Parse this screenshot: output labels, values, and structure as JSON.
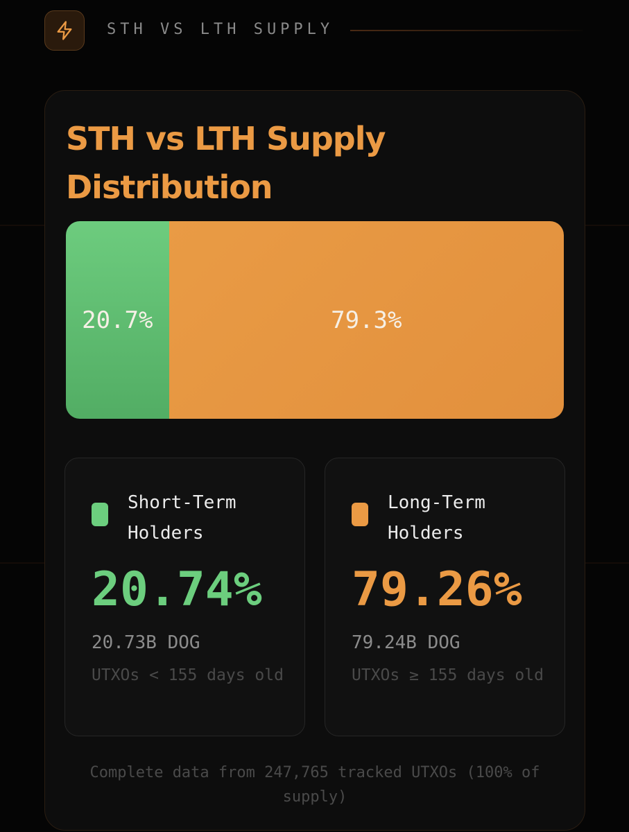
{
  "header": {
    "title": "STH VS LTH SUPPLY",
    "icon": "lightning-icon",
    "accent": "#eb9a44"
  },
  "card": {
    "title": "STH vs LTH Supply Distribution",
    "footnote": "Complete data from 247,765 tracked UTXOs (100% of supply)"
  },
  "chart_data": {
    "type": "bar",
    "orientation": "horizontal-stacked",
    "categories": [
      "Short-Term Holders",
      "Long-Term Holders"
    ],
    "values": [
      20.7,
      79.3
    ],
    "value_labels": [
      "20.7%",
      "79.3%"
    ],
    "colors": [
      "#62c274",
      "#e8963f"
    ],
    "title": "STH vs LTH Supply Distribution"
  },
  "stats": [
    {
      "label": "Short-Term Holders",
      "percent": "20.74%",
      "amount": "20.73B DOG",
      "description": "UTXOs < 155 days old",
      "color": "#6cce7e"
    },
    {
      "label": "Long-Term Holders",
      "percent": "79.26%",
      "amount": "79.24B DOG",
      "description": "UTXOs ≥ 155 days old",
      "color": "#eb9a44"
    }
  ]
}
